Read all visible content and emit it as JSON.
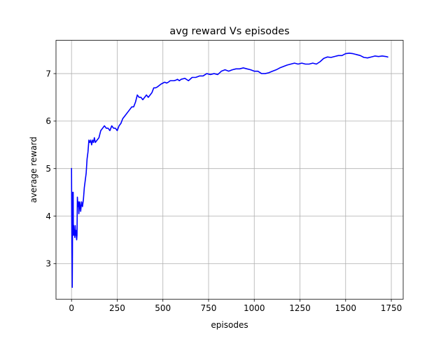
{
  "chart_data": {
    "type": "line",
    "title": "avg reward Vs episodes",
    "xlabel": "episodes",
    "ylabel": "average reward",
    "xlim": [
      -85,
      1815
    ],
    "ylim": [
      2.25,
      7.7
    ],
    "x_ticks": [
      0,
      250,
      500,
      750,
      1000,
      1250,
      1500,
      1750
    ],
    "y_ticks": [
      3,
      4,
      5,
      6,
      7
    ],
    "grid": true,
    "series": [
      {
        "color": "#0000ff",
        "x": [
          0,
          1,
          2,
          3,
          4,
          5,
          6,
          7,
          8,
          9,
          10,
          12,
          14,
          16,
          18,
          20,
          22,
          24,
          26,
          28,
          30,
          32,
          35,
          38,
          40,
          45,
          50,
          55,
          60,
          65,
          70,
          75,
          80,
          85,
          90,
          95,
          100,
          105,
          110,
          115,
          120,
          125,
          130,
          140,
          150,
          160,
          170,
          180,
          190,
          200,
          210,
          220,
          230,
          240,
          250,
          260,
          270,
          280,
          290,
          300,
          310,
          320,
          330,
          340,
          350,
          360,
          370,
          380,
          390,
          400,
          410,
          420,
          430,
          440,
          450,
          460,
          470,
          480,
          490,
          500,
          510,
          520,
          530,
          540,
          550,
          560,
          570,
          580,
          590,
          600,
          620,
          640,
          660,
          680,
          700,
          720,
          740,
          760,
          780,
          800,
          820,
          840,
          860,
          880,
          900,
          920,
          940,
          960,
          980,
          1000,
          1020,
          1040,
          1060,
          1080,
          1100,
          1120,
          1140,
          1160,
          1180,
          1200,
          1220,
          1240,
          1260,
          1280,
          1300,
          1320,
          1340,
          1360,
          1380,
          1400,
          1420,
          1440,
          1460,
          1480,
          1500,
          1520,
          1540,
          1560,
          1580,
          1600,
          1620,
          1640,
          1660,
          1680,
          1700,
          1720,
          1730
        ],
        "y": [
          5.0,
          4.0,
          3.4,
          3.0,
          2.5,
          3.2,
          4.5,
          3.8,
          3.6,
          4.5,
          3.6,
          3.8,
          3.6,
          3.7,
          3.55,
          3.8,
          3.6,
          3.7,
          3.6,
          3.5,
          3.6,
          4.4,
          4.2,
          4.3,
          4.05,
          4.3,
          4.1,
          4.3,
          4.2,
          4.35,
          4.6,
          4.75,
          4.9,
          5.2,
          5.35,
          5.6,
          5.55,
          5.6,
          5.5,
          5.6,
          5.55,
          5.65,
          5.55,
          5.6,
          5.65,
          5.8,
          5.85,
          5.9,
          5.85,
          5.85,
          5.8,
          5.9,
          5.85,
          5.85,
          5.8,
          5.9,
          5.95,
          6.05,
          6.1,
          6.15,
          6.2,
          6.25,
          6.3,
          6.3,
          6.4,
          6.55,
          6.5,
          6.5,
          6.45,
          6.5,
          6.55,
          6.5,
          6.55,
          6.6,
          6.7,
          6.7,
          6.72,
          6.75,
          6.78,
          6.8,
          6.82,
          6.8,
          6.82,
          6.85,
          6.85,
          6.85,
          6.86,
          6.88,
          6.85,
          6.88,
          6.9,
          6.85,
          6.92,
          6.92,
          6.95,
          6.95,
          7.0,
          6.98,
          7.0,
          6.98,
          7.05,
          7.08,
          7.05,
          7.08,
          7.1,
          7.1,
          7.12,
          7.1,
          7.08,
          7.05,
          7.05,
          7.0,
          7.0,
          7.02,
          7.05,
          7.08,
          7.12,
          7.15,
          7.18,
          7.2,
          7.22,
          7.2,
          7.22,
          7.2,
          7.2,
          7.22,
          7.2,
          7.25,
          7.32,
          7.35,
          7.34,
          7.36,
          7.38,
          7.38,
          7.42,
          7.43,
          7.42,
          7.4,
          7.38,
          7.34,
          7.33,
          7.35,
          7.37,
          7.36,
          7.37,
          7.36,
          7.35
        ]
      }
    ]
  }
}
